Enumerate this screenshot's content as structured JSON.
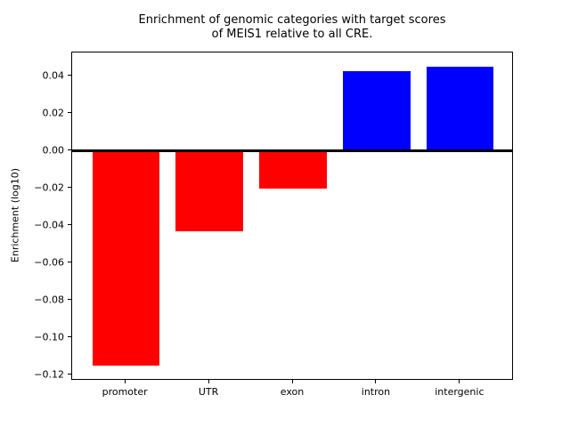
{
  "figure": {
    "title_line1": "Enrichment of genomic categories with target scores",
    "title_line2": "of MEIS1 relative to all CRE."
  },
  "chart_data": {
    "type": "bar",
    "title": "Enrichment of genomic categories with target scores of MEIS1 relative to all CRE.",
    "title_lines": [
      "Enrichment of genomic categories with target scores",
      "of MEIS1 relative to all CRE."
    ],
    "categories": [
      "promoter",
      "UTR",
      "exon",
      "intron",
      "intergenic"
    ],
    "values": [
      -0.115,
      -0.043,
      -0.02,
      0.043,
      0.045
    ],
    "bar_colors": [
      "#ff0000",
      "#ff0000",
      "#ff0000",
      "#0000ff",
      "#0000ff"
    ],
    "negative_color": "#ff0000",
    "positive_color": "#0000ff",
    "xlabel": "",
    "ylabel": "Enrichment (log10)",
    "ylim": [
      -0.123,
      0.053
    ],
    "xlim": [
      -0.64,
      4.64
    ],
    "yticks": [
      0.04,
      0.02,
      0.0,
      -0.02,
      -0.04,
      -0.06,
      -0.08,
      -0.1,
      -0.12
    ],
    "yticklabels": [
      "0.04",
      "0.02",
      "0.00",
      "−0.02",
      "−0.04",
      "−0.06",
      "−0.08",
      "−0.10",
      "−0.12"
    ],
    "bar_width": 0.8,
    "zero_line": 0,
    "grid": false,
    "legend": null,
    "background_color": "#ffffff",
    "axis_color": "#000000",
    "text_color": "#000000"
  }
}
